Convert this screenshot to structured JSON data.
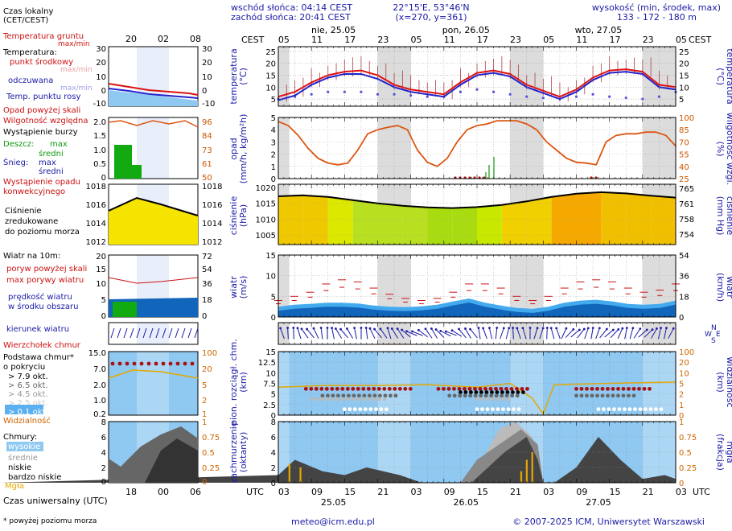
{
  "header": {
    "sunrise": "wschód słońca: 04:14 CEST",
    "sunset": "zachód słońca: 20:41 CEST",
    "coords": "22°15'E, 53°46'N",
    "grid": "(x=270, y=361)",
    "elevation_label": "wysokość (min, środek, max)",
    "elevation": "133 - 172 - 180 m",
    "tz_left": "CEST",
    "tz_right": "CEST",
    "days_top": [
      "nie, 25.05",
      "pon, 26.05",
      "wto, 27.05"
    ],
    "hours_top": [
      "05",
      "11",
      "17",
      "23",
      "05",
      "11",
      "17",
      "23",
      "05",
      "11",
      "17",
      "23",
      "05"
    ],
    "utc": "UTC",
    "hours_bottom": [
      "03",
      "09",
      "15",
      "21",
      "03",
      "09",
      "15",
      "21",
      "03",
      "09",
      "15",
      "21",
      "03"
    ],
    "days_bottom": [
      "25.05",
      "26.05",
      "27.05"
    ]
  },
  "legend": {
    "local_time": "Czas lokalny",
    "local_time2": "(CET/CEST)",
    "legend_hours_top": [
      "20",
      "02",
      "08"
    ],
    "legend_hours_bottom": [
      "18",
      "00",
      "06"
    ],
    "temp_ground": "Temperatura gruntu",
    "temp_ground2": "max/min",
    "temperature": "Temperatura:",
    "mid_point": "punkt środkowy",
    "max_min_a": "max/min",
    "perceived": "odczuwana",
    "max_min_b": "max/min",
    "dew_point": "Temp. punktu rosy",
    "precip_above": "Opad powyżej skali",
    "humidity": "Wilgotność względna",
    "storm": "Wystąpienie burzy",
    "rain": "Deszcz:",
    "rain_max": "max",
    "rain_mid": "średni",
    "snow": "Śnieg:",
    "snow_max": "max",
    "snow_mid": "średni",
    "precip_conv": "Wystąpienie opadu",
    "precip_conv2": "konwekcyjnego",
    "pressure1": "Ciśnienie",
    "pressure2": "zredukowane",
    "pressure3": "do poziomu morza",
    "wind": "Wiatr na 10m:",
    "gust_above": "poryw powyżej skali",
    "gust_max": "max porywy wiatru",
    "wind_speed": "prędkość wiatru",
    "wind_speed2": "w środku obszaru",
    "wind_dir": "kierunek wiatru",
    "cloud_top": "Wierzchołek chmur",
    "cloud_base1": "Podstawa chmur*",
    "cloud_base2": "o pokryciu",
    "okt": [
      "> 7.9 okt.",
      "> 6.5 okt.",
      "> 4.5 okt.",
      "> 2.5 okt.",
      "> 0.1 okt."
    ],
    "visibility": "Widzialność",
    "clouds": "Chmury:",
    "high": "wysokie",
    "mid": "średnie",
    "low": "niskie",
    "very_low": "bardzo niskie",
    "fog": "Mgła",
    "utc_time": "Czas uniwersalny (UTC)",
    "footnote": "* powyżej poziomu morza"
  },
  "footer": {
    "email": "meteo@icm.edu.pl",
    "copyright": "© 2007-2025 ICM, Uniwersytet Warszawski"
  },
  "axes": {
    "temp_left": "temperatura",
    "temp_left2": "(°C)",
    "temp_right": "temperatura",
    "temp_right2": "(°C)",
    "precip_left": "opad",
    "precip_left2": "(mm/h, kg/m²h)",
    "precip_right": "wilgotność wzgl.",
    "precip_right2": "(%)",
    "press_left": "ciśnienie",
    "press_left2": "(hPa)",
    "press_right": "ciśnienie",
    "press_right2": "(mm Hg)",
    "wind_left": "wiatr",
    "wind_left2": "(m/s)",
    "wind_right": "wiatr",
    "wind_right2": "(km/h)",
    "cloud_left": "pion. rozciągł. chm.",
    "cloud_left2": "(km)",
    "cloud_right": "widzialność",
    "cloud_right2": "(km)",
    "cover_left": "zachmurzenie",
    "cover_left2": "(oktanty)",
    "cover_right": "mgła",
    "cover_right2": "(frakcja)",
    "compass_n": "N",
    "compass_w": "W",
    "compass_e": "E",
    "compass_s": "S"
  },
  "colors": {
    "temperature": "#dd1111",
    "perceived": "#2222cc",
    "dew": "#5555dd",
    "humidity": "#dd5511",
    "pressure": "#000000",
    "wind": "#1177dd",
    "gust": "#cc1111",
    "sky": "#8fc8f0",
    "night": "#dcdcdc"
  },
  "chart_data": [
    {
      "type": "line",
      "name": "temperature",
      "x_hours_from_start": [
        0,
        3,
        6,
        9,
        12,
        15,
        18,
        21,
        24,
        27,
        30,
        33,
        36,
        39,
        42,
        45,
        48,
        51,
        54,
        57,
        60,
        63,
        66,
        69,
        72
      ],
      "series": [
        {
          "name": "temperatura",
          "values": [
            6,
            8,
            12,
            15,
            16.5,
            17,
            15,
            11,
            9,
            8,
            7,
            12,
            16,
            17,
            15.5,
            11,
            8.5,
            6,
            9,
            14,
            17,
            17.5,
            16.5,
            11,
            10
          ]
        },
        {
          "name": "odczuwana",
          "values": [
            4.5,
            6.5,
            11,
            14,
            15.5,
            15.5,
            13.5,
            10,
            8,
            7,
            6,
            11,
            15,
            16,
            14.5,
            10,
            7.5,
            5,
            8,
            13,
            16,
            16.5,
            15.5,
            10,
            9
          ]
        },
        {
          "name": "punkt rosy",
          "values": [
            5,
            6,
            7,
            8,
            8,
            8,
            7,
            7,
            6.5,
            6,
            6,
            8,
            9,
            8,
            7,
            6,
            5.5,
            5,
            6,
            7,
            6,
            5.5,
            5,
            6,
            8
          ]
        }
      ],
      "ylim": [
        2,
        27
      ]
    },
    {
      "type": "line",
      "name": "precipitation_humidity",
      "humidity_values": [
        95,
        90,
        78,
        62,
        50,
        44,
        42,
        44,
        60,
        80,
        85,
        88,
        90,
        85,
        60,
        45,
        40,
        50,
        70,
        85,
        90,
        92,
        96,
        96,
        96,
        92,
        85,
        70,
        60,
        50,
        45,
        44,
        42,
        70,
        78,
        80,
        80,
        82,
        82,
        78,
        65
      ],
      "humidity_ylim": [
        25,
        100
      ],
      "precip_ylim": [
        0,
        5
      ]
    },
    {
      "type": "line",
      "name": "pressure",
      "values": [
        1017.2,
        1017.5,
        1017.0,
        1016.0,
        1015.0,
        1014.2,
        1013.7,
        1013.5,
        1013.8,
        1014.5,
        1015.6,
        1017.0,
        1018.0,
        1018.5,
        1018.1,
        1017.4,
        1016.8
      ],
      "ylim": [
        1002,
        1021
      ],
      "mmhg_ticks": [
        "765",
        "761",
        "758",
        "754"
      ]
    },
    {
      "type": "area",
      "name": "wind",
      "speed": [
        1.5,
        2,
        2.2,
        2.5,
        2.5,
        2.3,
        1.8,
        1.5,
        1.4,
        1.6,
        2.0,
        2.8,
        3.5,
        2.5,
        1.8,
        1.2,
        1.0,
        1.5,
        2.5,
        3.0,
        3.2,
        2.8,
        2.2,
        2.0,
        2.2,
        3.0
      ],
      "gust": [
        4,
        5,
        6,
        8,
        9,
        8.5,
        7,
        5.5,
        4.5,
        4,
        4.5,
        6,
        8,
        8,
        7,
        5,
        4,
        5,
        7,
        8.5,
        9,
        8.5,
        7,
        6,
        6.5,
        8
      ],
      "ylim": [
        0,
        15
      ]
    },
    {
      "type": "area",
      "name": "cloud_cover",
      "ylim": [
        0,
        8
      ],
      "visibility_ylim": [
        0,
        100
      ]
    }
  ]
}
